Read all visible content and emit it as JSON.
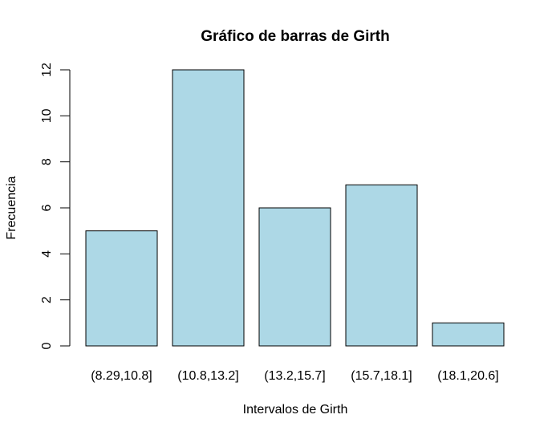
{
  "chart_data": {
    "type": "bar",
    "title": "Gráfico de barras de Girth",
    "xlabel": "Intervalos de Girth",
    "ylabel": "Frecuencia",
    "categories": [
      "(8.29,10.8]",
      "(10.8,13.2]",
      "(13.2,15.7]",
      "(15.7,18.1]",
      "(18.1,20.6]"
    ],
    "values": [
      5,
      12,
      6,
      7,
      1
    ],
    "ylim": [
      0,
      12
    ],
    "yticks": [
      "0",
      "2",
      "4",
      "6",
      "8",
      "10",
      "12"
    ],
    "bar_color": "#ADD8E6",
    "bar_edge_color": "#000000",
    "grid": false,
    "legend": false
  }
}
